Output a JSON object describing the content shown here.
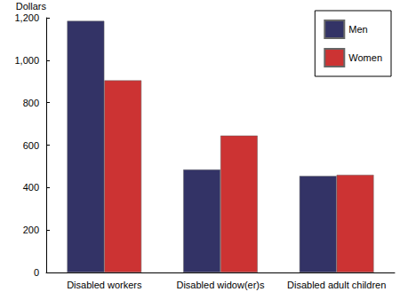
{
  "chart_data": {
    "type": "bar",
    "y_label": "Dollars",
    "categories": [
      "Disabled workers",
      "Disabled widow(er)s",
      "Disabled adult children"
    ],
    "series": [
      {
        "name": "Men",
        "color": "#333366",
        "values": [
          1185,
          485,
          455
        ]
      },
      {
        "name": "Women",
        "color": "#cc3333",
        "values": [
          905,
          645,
          460
        ]
      }
    ],
    "ylim": [
      0,
      1200
    ],
    "yticks": [
      0,
      200,
      400,
      600,
      800,
      {
        "value": 1000,
        "label": "1,000"
      },
      {
        "value": 1200,
        "label": "1,200"
      }
    ],
    "grid": false,
    "legend": "top-right"
  }
}
